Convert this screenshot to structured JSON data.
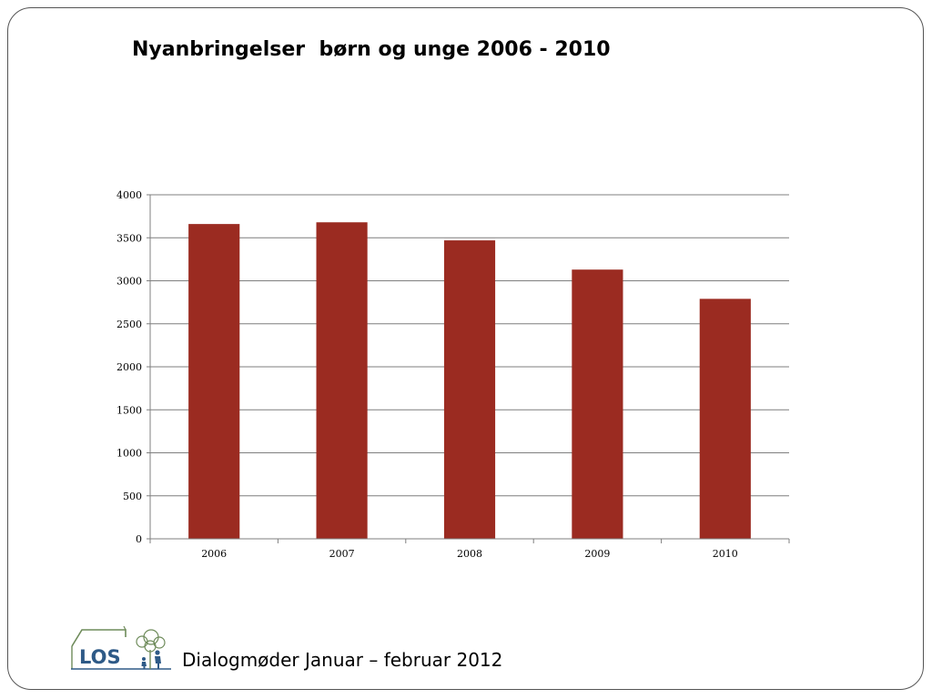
{
  "slide": {
    "title": "Nyanbringelser  børn og unge 2006 - 2010",
    "footer": "Dialogmøder Januar – februar 2012",
    "logo_text": "LOS"
  },
  "colors": {
    "bar": "#9b2b21",
    "grid": "#7f7f7f",
    "axis": "#7f7f7f",
    "logo_blue": "#2e5a87",
    "logo_green": "#6e8b5a"
  },
  "chart_data": {
    "type": "bar",
    "title": "",
    "xlabel": "",
    "ylabel": "",
    "categories": [
      "2006",
      "2007",
      "2008",
      "2009",
      "2010"
    ],
    "values": [
      3660,
      3680,
      3470,
      3130,
      2790
    ],
    "ylim": [
      0,
      4000
    ],
    "yticks": [
      0,
      500,
      1000,
      1500,
      2000,
      2500,
      3000,
      3500,
      4000
    ],
    "grid": true,
    "legend": "none"
  }
}
